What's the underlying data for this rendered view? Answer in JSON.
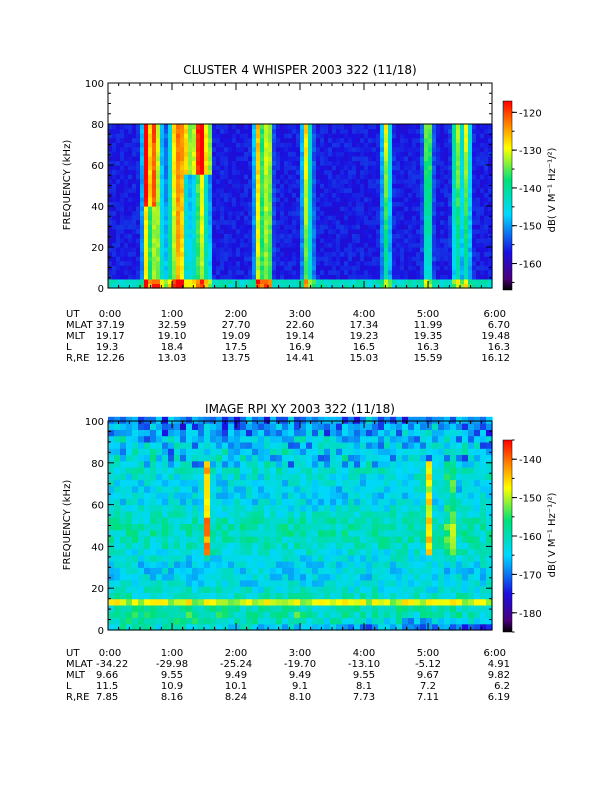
{
  "chart_data": [
    {
      "type": "heatmap",
      "title": "CLUSTER 4 WHISPER 2003 322 (11/18)",
      "ylabel": "FREQUENCY (kHz)",
      "ylim": [
        0,
        100
      ],
      "yticks": [
        "0",
        "20",
        "40",
        "60",
        "80",
        "100"
      ],
      "data_top_khz": 80,
      "colorbar": {
        "label": "dB( V M⁻¹ Hz⁻¹/²)",
        "range": [
          -167,
          -117
        ],
        "ticks": [
          "-120",
          "-130",
          "-140",
          "-150",
          "-160"
        ]
      },
      "features": {
        "emission_times_h": [
          0.6,
          0.75,
          1.05,
          1.15,
          1.45,
          2.35,
          2.5,
          3.1,
          4.35,
          5.0,
          5.45,
          5.6
        ],
        "broad_emission": [
          [
            0.55,
            1.6,
            1.0
          ],
          [
            2.3,
            2.55,
            0.8
          ],
          [
            3.05,
            3.25,
            0.5
          ]
        ]
      },
      "ephemeris": {
        "labels": [
          "UT",
          "MLAT",
          "MLT",
          "L",
          "R,RE"
        ],
        "columns": [
          [
            "0:00",
            "37.19",
            "19.17",
            "19.3",
            "12.26"
          ],
          [
            "1:00",
            "32.59",
            "19.10",
            "18.4",
            "13.03"
          ],
          [
            "2:00",
            "27.70",
            "19.09",
            "17.5",
            "13.75"
          ],
          [
            "3:00",
            "22.60",
            "19.14",
            "16.9",
            "14.41"
          ],
          [
            "4:00",
            "17.34",
            "19.23",
            "16.5",
            "15.03"
          ],
          [
            "5:00",
            "11.99",
            "19.35",
            "16.3",
            "15.59"
          ],
          [
            "6:00",
            "6.70",
            "19.48",
            "16.3",
            "16.12"
          ]
        ]
      }
    },
    {
      "type": "heatmap",
      "title": "IMAGE RPI XY 2003 322 (11/18)",
      "ylabel": "FREQUENCY (kHz)",
      "ylim": [
        0,
        100
      ],
      "yticks": [
        "0",
        "20",
        "40",
        "60",
        "80",
        "100"
      ],
      "data_top_khz": 102,
      "colorbar": {
        "label": "dB( V M⁻¹ Hz⁻¹/²)",
        "range": [
          -185,
          -135
        ],
        "ticks": [
          "-140",
          "-150",
          "-160",
          "-170",
          "-180"
        ]
      },
      "features": {
        "emission_times_h": [
          1.55,
          5.0,
          5.35
        ],
        "hot_band_khz": [
          12,
          16
        ]
      },
      "ephemeris": {
        "labels": [
          "UT",
          "MLAT",
          "MLT",
          "L",
          "R,RE"
        ],
        "columns": [
          [
            "0:00",
            "-34.22",
            "9.66",
            "11.5",
            "7.85"
          ],
          [
            "1:00",
            "-29.98",
            "9.55",
            "10.9",
            "8.16"
          ],
          [
            "2:00",
            "-25.24",
            "9.49",
            "10.1",
            "8.24"
          ],
          [
            "3:00",
            "-19.70",
            "9.49",
            "9.1",
            "8.10"
          ],
          [
            "4:00",
            "-13.10",
            "9.55",
            "8.1",
            "7.73"
          ],
          [
            "5:00",
            "-5.12",
            "9.67",
            "7.2",
            "7.11"
          ],
          [
            "6:00",
            "4.91",
            "9.82",
            "6.2",
            "6.19"
          ]
        ]
      }
    }
  ]
}
